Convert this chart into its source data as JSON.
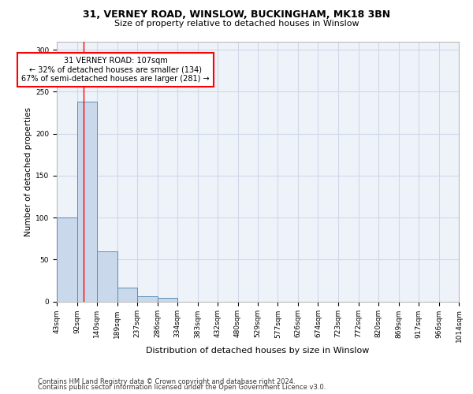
{
  "title1": "31, VERNEY ROAD, WINSLOW, BUCKINGHAM, MK18 3BN",
  "title2": "Size of property relative to detached houses in Winslow",
  "xlabel": "Distribution of detached houses by size in Winslow",
  "ylabel": "Number of detached properties",
  "footer1": "Contains HM Land Registry data © Crown copyright and database right 2024.",
  "footer2": "Contains public sector information licensed under the Open Government Licence v3.0.",
  "annotation_line1": "31 VERNEY ROAD: 107sqm",
  "annotation_line2": "← 32% of detached houses are smaller (134)",
  "annotation_line3": "67% of semi-detached houses are larger (281) →",
  "bar_edges": [
    43,
    92,
    140,
    189,
    237,
    286,
    334,
    383,
    432,
    480,
    529,
    577,
    626,
    674,
    723,
    772,
    820,
    869,
    917,
    966,
    1014
  ],
  "bar_heights": [
    100,
    238,
    60,
    16,
    6,
    4,
    0,
    0,
    0,
    0,
    0,
    0,
    0,
    0,
    0,
    0,
    0,
    0,
    0,
    0
  ],
  "bar_color": "#c9d9eb",
  "bar_edgecolor": "#5b8db8",
  "vline_x": 107,
  "vline_color": "red",
  "ylim": [
    0,
    310
  ],
  "yticks": [
    0,
    50,
    100,
    150,
    200,
    250,
    300
  ],
  "xlim": [
    43,
    1014
  ],
  "grid_color": "#d0d8e8",
  "bg_color": "#eef2f9",
  "annotation_box_edgecolor": "red",
  "annotation_box_facecolor": "white",
  "title1_fontsize": 9,
  "title2_fontsize": 8,
  "xlabel_fontsize": 8,
  "ylabel_fontsize": 7.5,
  "tick_fontsize": 6.5,
  "footer_fontsize": 6
}
